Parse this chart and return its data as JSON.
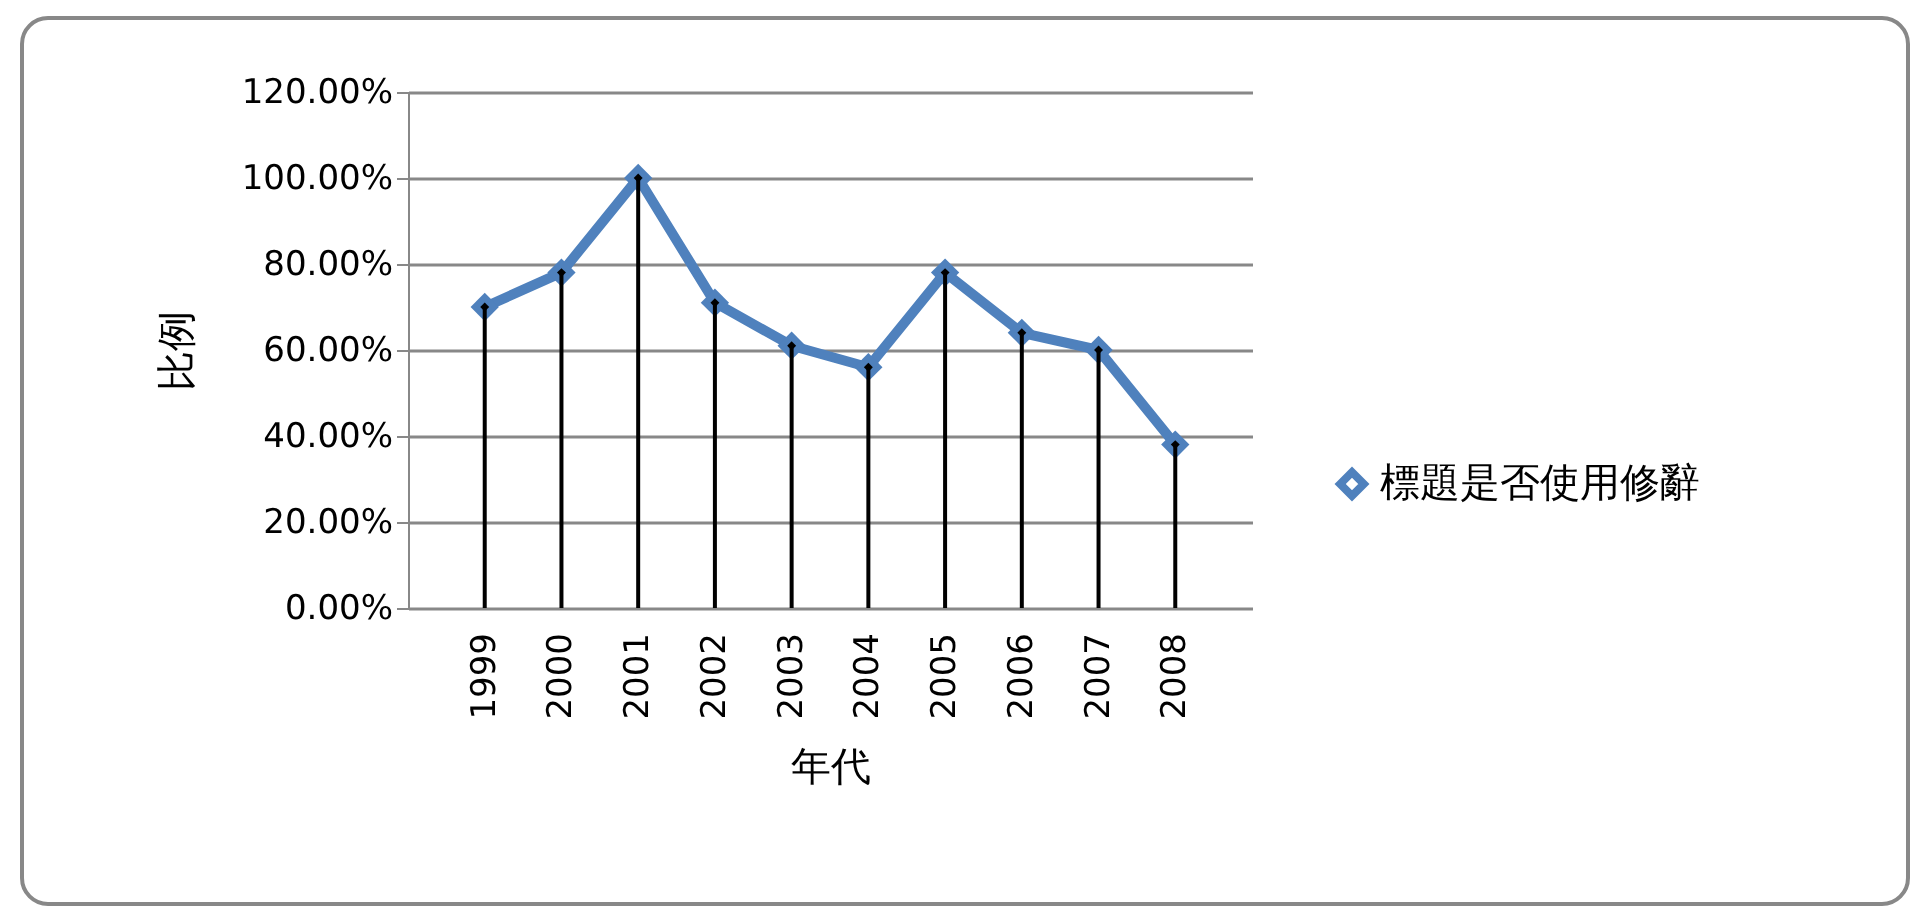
{
  "chart_data": {
    "type": "line",
    "xlabel": "年代",
    "ylabel": "比例",
    "categories": [
      "1999",
      "2000",
      "2001",
      "2002",
      "2003",
      "2004",
      "2005",
      "2006",
      "2007",
      "2008"
    ],
    "series": [
      {
        "name": "標題是否使用修辭",
        "color": "#4f81bd",
        "values": [
          70,
          78,
          100,
          71,
          61,
          56,
          78,
          64,
          60,
          38
        ]
      },
      {
        "type": "lollipop",
        "color": "#000000",
        "values": [
          70,
          78,
          100,
          71,
          61,
          56,
          78,
          64,
          60,
          38
        ]
      }
    ],
    "ylim": [
      0,
      120
    ],
    "yticks": [
      {
        "value": 0,
        "label": "0.00%"
      },
      {
        "value": 20,
        "label": "20.00%"
      },
      {
        "value": 40,
        "label": "40.00%"
      },
      {
        "value": 60,
        "label": "60.00%"
      },
      {
        "value": 80,
        "label": "80.00%"
      },
      {
        "value": 100,
        "label": "100.00%"
      },
      {
        "value": 120,
        "label": "120.00%"
      }
    ],
    "grid": "y",
    "legend": "right",
    "marker": "diamond",
    "line_style": "solid"
  }
}
